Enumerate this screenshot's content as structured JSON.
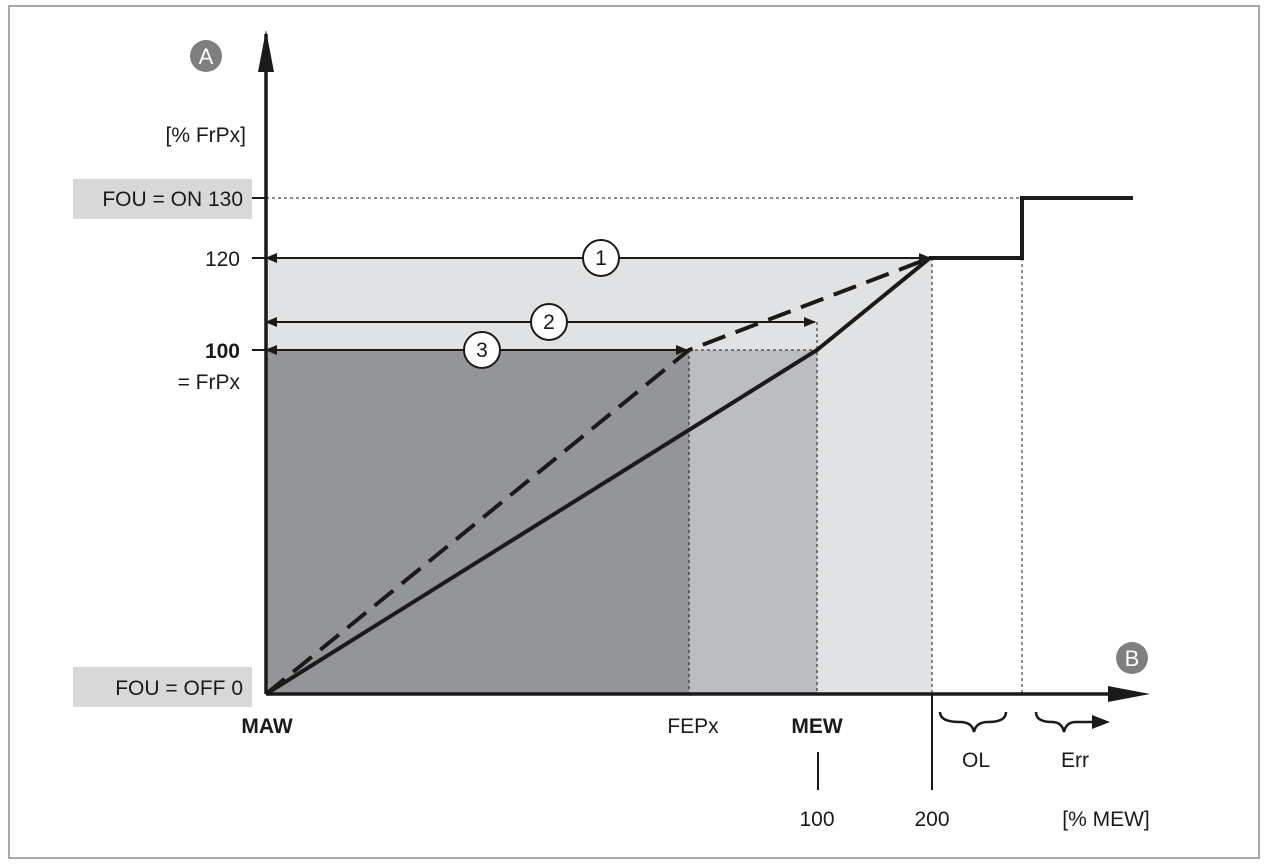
{
  "axis_a": {
    "badge": "A",
    "unit": "[% FrPx]"
  },
  "axis_b": {
    "badge": "B",
    "unit": "[% MEW]"
  },
  "y_ticks": {
    "fou_on": "FOU = ON 130",
    "t120": "120",
    "t100": "100",
    "frpx": "= FrPx",
    "fou_off": "FOU = OFF  0"
  },
  "x_labels": {
    "maw": "MAW",
    "fepx": "FEPx",
    "mew": "MEW",
    "t100": "100",
    "t200": "200",
    "ol": "OL",
    "err": "Err"
  },
  "callouts": [
    "1",
    "2",
    "3"
  ],
  "colors": {
    "dark_region": "#949598",
    "mid_region": "#bcbdc0",
    "light_region": "#e1e2e4",
    "label_box": "#d8d8d8",
    "badge": "#7f7f7f",
    "line": "#1a1a1a",
    "frame": "#8c8c8c"
  }
}
